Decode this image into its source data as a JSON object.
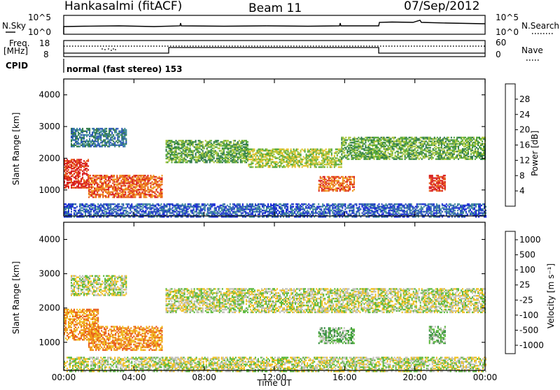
{
  "header": {
    "station": "Hankasalmi (fitACF)",
    "beam": "Beam 11",
    "date": "07/Sep/2012"
  },
  "status_panels": {
    "nsky_label": "N.Sky",
    "nsky_ticks": [
      "10^5",
      "10^0"
    ],
    "nsearch_label": "N.Search",
    "nsearch_ticks": [
      "10^5",
      "10^0"
    ],
    "freq_label_1": "Freq.",
    "freq_label_2": "[MHz]",
    "freq_ticks": [
      "18",
      "8"
    ],
    "nave_label": "Nave",
    "nave_ticks": [
      "60",
      "0"
    ],
    "cpid_label": "CPID",
    "cpid_value": "normal (fast stereo) 153"
  },
  "chart_data": [
    {
      "type": "heatmap",
      "name": "power",
      "ylabel": "Slant Range [km]",
      "ylim": [
        180,
        4500
      ],
      "yticks": [
        "1000",
        "2000",
        "3000",
        "4000"
      ],
      "xlim_hours": [
        0,
        24
      ],
      "colorbar": {
        "label": "Power [dB]",
        "ticks": [
          "4",
          "8",
          "12",
          "16",
          "20",
          "24",
          "28"
        ],
        "colors": [
          "#1a2bd6",
          "#2a55b8",
          "#3f8a9a",
          "#2f7a4a",
          "#55a83a",
          "#a8c63a",
          "#e6c02a",
          "#f09a20",
          "#e8601a",
          "#d81e1e"
        ]
      },
      "bands": [
        {
          "t0": 0.4,
          "t1": 3.6,
          "r_lo": 2400,
          "r_hi": 3000,
          "level": 2
        },
        {
          "t0": 0.0,
          "t1": 1.4,
          "r_lo": 1100,
          "r_hi": 2000,
          "level": 9
        },
        {
          "t0": 1.4,
          "t1": 5.6,
          "r_lo": 800,
          "r_hi": 1500,
          "level": 8
        },
        {
          "t0": 5.8,
          "t1": 10.5,
          "r_lo": 1900,
          "r_hi": 2600,
          "level": 4
        },
        {
          "t0": 10.5,
          "t1": 15.8,
          "r_lo": 1750,
          "r_hi": 2350,
          "level": 5
        },
        {
          "t0": 15.8,
          "t1": 24.0,
          "r_lo": 2000,
          "r_hi": 2700,
          "level": 4
        },
        {
          "t0": 14.5,
          "t1": 16.5,
          "r_lo": 1000,
          "r_hi": 1450,
          "level": 8
        },
        {
          "t0": 20.8,
          "t1": 21.7,
          "r_lo": 1000,
          "r_hi": 1500,
          "level": 9
        },
        {
          "t0": 0.0,
          "t1": 24.0,
          "r_lo": 180,
          "r_hi": 600,
          "level": 1
        }
      ]
    },
    {
      "type": "heatmap",
      "name": "velocity",
      "ylabel": "Slant Range [km]",
      "ylim": [
        180,
        4500
      ],
      "yticks": [
        "1000",
        "2000",
        "3000",
        "4000"
      ],
      "xlabel": "Time UT",
      "xticks": [
        "00:00",
        "04:00",
        "08:00",
        "12:00",
        "16:00",
        "20:00",
        "00:00"
      ],
      "xlim_hours": [
        0,
        24
      ],
      "colorbar": {
        "label": "Velocity [m s⁻¹]",
        "ticks": [
          "1000",
          "500",
          "100",
          "25",
          "-25",
          "-100",
          "-500",
          "-1000"
        ],
        "colors": [
          "#2040b0",
          "#3a7aa0",
          "#2e8a3a",
          "#5ab83a",
          "#c0c0b8",
          "#f0c020",
          "#f0901a",
          "#e85a18",
          "#d81e1e"
        ]
      },
      "bands": [
        {
          "t0": 0.4,
          "t1": 3.6,
          "r_lo": 2400,
          "r_hi": 3000,
          "level": 4
        },
        {
          "t0": 0.0,
          "t1": 2.0,
          "r_lo": 1100,
          "r_hi": 2000,
          "level": 6
        },
        {
          "t0": 1.4,
          "t1": 5.6,
          "r_lo": 800,
          "r_hi": 1500,
          "level": 6
        },
        {
          "t0": 5.8,
          "t1": 24.0,
          "r_lo": 1900,
          "r_hi": 2600,
          "level": 4
        },
        {
          "t0": 14.5,
          "t1": 16.5,
          "r_lo": 1000,
          "r_hi": 1450,
          "level": 3
        },
        {
          "t0": 20.8,
          "t1": 21.7,
          "r_lo": 1000,
          "r_hi": 1500,
          "level": 3
        },
        {
          "t0": 0.0,
          "t1": 24.0,
          "r_lo": 180,
          "r_hi": 600,
          "level": 4
        }
      ]
    }
  ]
}
